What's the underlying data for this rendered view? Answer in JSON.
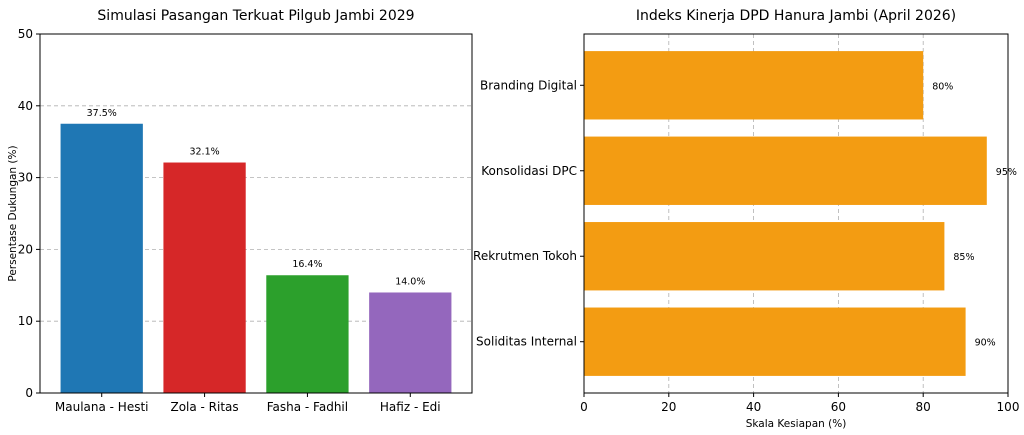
{
  "chart_data": [
    {
      "type": "bar",
      "title": "Simulasi Pasangan Terkuat Pilgub Jambi 2029",
      "xlabel": "",
      "ylabel": "Persentase Dukungan (%)",
      "categories": [
        "Maulana - Hesti",
        "Zola - Ritas",
        "Fasha - Fadhil",
        "Hafiz - Edi"
      ],
      "values": [
        37.5,
        32.1,
        16.4,
        14.0
      ],
      "data_labels": [
        "37.5%",
        "32.1%",
        "16.4%",
        "14.0%"
      ],
      "colors": [
        "#1f77b4",
        "#d62728",
        "#2ca02c",
        "#9467bd"
      ],
      "ylim": [
        0,
        50
      ],
      "yticks": [
        0,
        10,
        20,
        30,
        40,
        50
      ],
      "grid": "y"
    },
    {
      "type": "bar",
      "orientation": "horizontal",
      "title": "Indeks Kinerja DPD Hanura Jambi (April 2026)",
      "xlabel": "Skala Kesiapan (%)",
      "ylabel": "",
      "categories": [
        "Soliditas Internal",
        "Rekrutmen Tokoh",
        "Konsolidasi DPC",
        "Branding Digital"
      ],
      "values": [
        90,
        85,
        95,
        80
      ],
      "data_labels": [
        "90%",
        "85%",
        "95%",
        "80%"
      ],
      "color": "#f39c12",
      "xlim": [
        0,
        100
      ],
      "xticks": [
        0,
        20,
        40,
        60,
        80,
        100
      ],
      "grid": "x"
    }
  ]
}
